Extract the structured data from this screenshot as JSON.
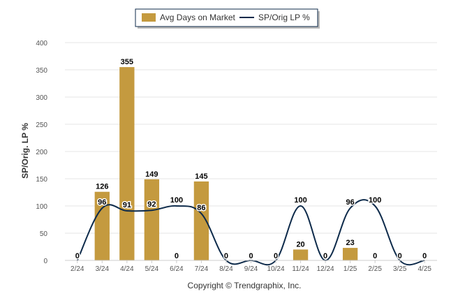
{
  "chart_data": {
    "type": "bar",
    "categories": [
      "2/24",
      "3/24",
      "4/24",
      "5/24",
      "6/24",
      "7/24",
      "8/24",
      "9/24",
      "10/24",
      "11/24",
      "12/24",
      "1/25",
      "2/25",
      "3/25",
      "4/25"
    ],
    "series": [
      {
        "name": "Avg Days on Market",
        "type": "bar",
        "color": "#c49a3f",
        "values": [
          0,
          126,
          355,
          149,
          0,
          145,
          0,
          0,
          0,
          20,
          0,
          23,
          0,
          0,
          0
        ],
        "labels": [
          "0",
          "126",
          "355",
          "149",
          "0",
          "145",
          "0",
          "0",
          "0",
          "20",
          "0",
          "23",
          "0",
          "0",
          "0"
        ]
      },
      {
        "name": "SP/Orig LP %",
        "type": "line",
        "color": "#0d2a4a",
        "values": [
          0,
          96,
          91,
          92,
          100,
          86,
          0,
          0,
          0,
          100,
          0,
          96,
          100,
          0,
          0
        ],
        "labels": [
          null,
          "96",
          "91",
          "92",
          "100",
          "86",
          null,
          null,
          null,
          "100",
          null,
          "96",
          "100",
          null,
          null
        ]
      }
    ],
    "ylabel": "SP/Orig. LP %",
    "ylim": [
      0,
      400
    ],
    "yticks": [
      "0",
      "50",
      "100",
      "150",
      "200",
      "250",
      "300",
      "350",
      "400"
    ],
    "grid": true,
    "legend_position": "top-center",
    "copyright": "Copyright © Trendgraphix, Inc."
  }
}
